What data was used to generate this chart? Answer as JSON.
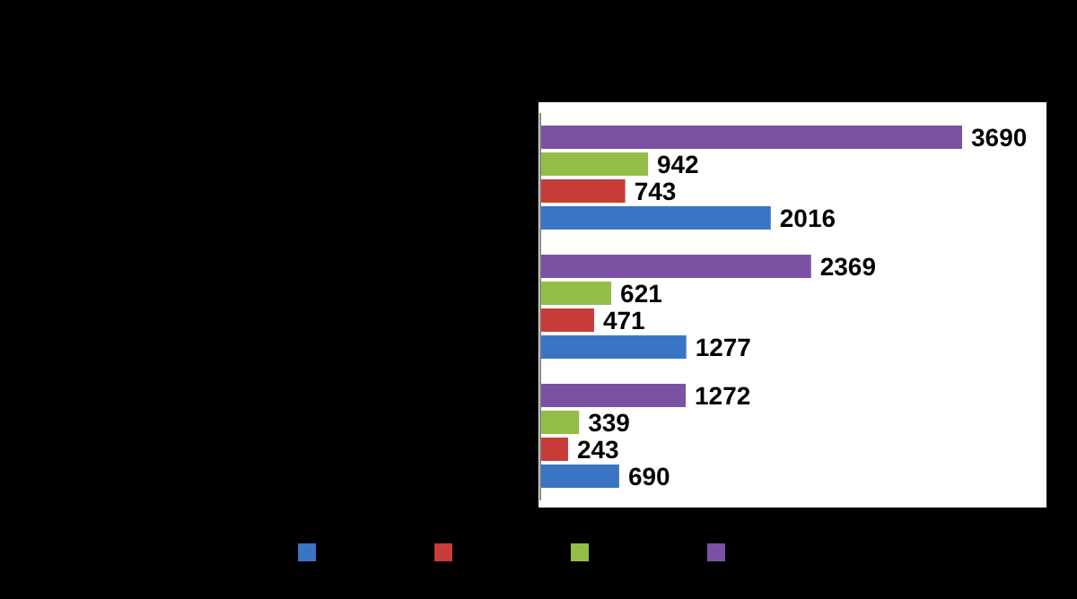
{
  "chart_data": {
    "type": "bar",
    "orientation": "horizontal",
    "categories": [
      null,
      null,
      null
    ],
    "series": [
      {
        "color": "#3a75c4",
        "values": [
          2016,
          1277,
          690
        ]
      },
      {
        "color": "#c83c3a",
        "values": [
          743,
          471,
          243
        ]
      },
      {
        "color": "#94bd48",
        "values": [
          942,
          621,
          339
        ]
      },
      {
        "color": "#7b52a3",
        "values": [
          3690,
          2369,
          1272
        ]
      }
    ],
    "data_labels": true,
    "tick_labels": false,
    "grid": false
  }
}
